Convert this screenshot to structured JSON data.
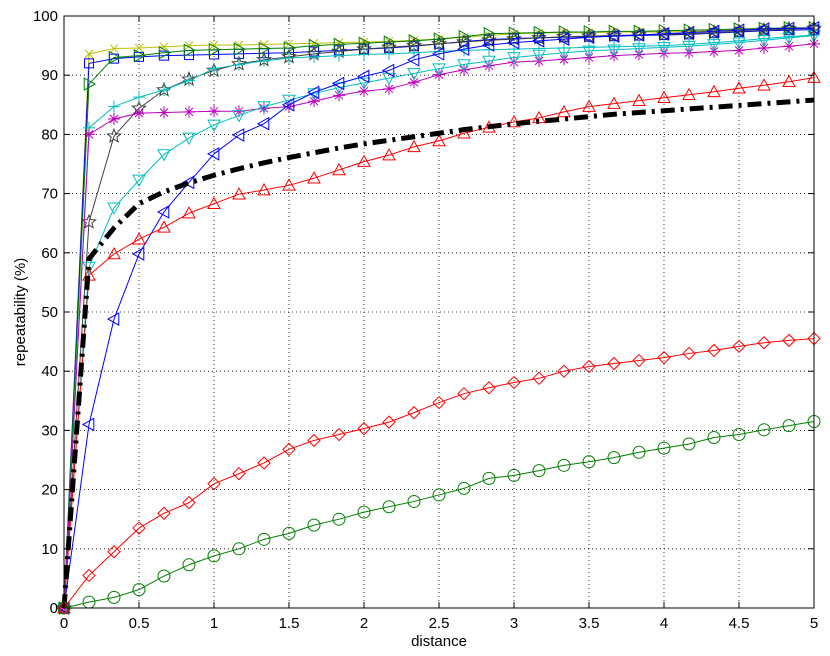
{
  "chart_data": {
    "type": "line",
    "title": "",
    "xlabel": "distance",
    "ylabel": "repeatability (%)",
    "xlim": [
      0,
      5
    ],
    "ylim": [
      0,
      100
    ],
    "grid": true,
    "grid_style": "dotted",
    "legend": "none",
    "x_ticks": [
      "0",
      "0.5",
      "1",
      "1.5",
      "2",
      "2.5",
      "3",
      "3.5",
      "4",
      "4.5",
      "5"
    ],
    "y_ticks": [
      "0",
      "10",
      "20",
      "30",
      "40",
      "50",
      "60",
      "70",
      "80",
      "90",
      "100"
    ],
    "x": [
      0,
      0.1667,
      0.3333,
      0.5,
      0.6667,
      0.8333,
      1,
      1.1667,
      1.3333,
      1.5,
      1.6667,
      1.8333,
      2,
      2.1667,
      2.3333,
      2.5,
      2.6667,
      2.8333,
      3,
      3.1667,
      3.3333,
      3.5,
      3.6667,
      3.8333,
      4,
      4.1667,
      4.3333,
      4.5,
      4.6667,
      4.8333,
      5
    ],
    "series": [
      {
        "color": "#bfbf00",
        "marker": "x",
        "values": [
          0,
          93.6,
          94.5,
          94.6,
          94.8,
          95,
          95.1,
          95.1,
          95.2,
          95.3,
          95.4,
          95.5,
          95.6,
          95.7,
          95.9,
          96.1,
          96.4,
          96.7,
          97,
          97.1,
          97.2,
          97.2,
          97.3,
          97.3,
          97.3,
          97.4,
          97.5,
          97.7,
          97.8,
          97.9,
          98
        ]
      },
      {
        "color": "#0000ff",
        "marker": "square",
        "values": [
          0,
          92,
          92.8,
          93.1,
          93.3,
          93.4,
          93.5,
          93.6,
          93.7,
          93.8,
          94,
          94.2,
          94.4,
          94.6,
          94.9,
          95.3,
          95.7,
          96,
          96.2,
          96.3,
          96.4,
          96.5,
          96.6,
          96.7,
          96.8,
          96.9,
          97.1,
          97.3,
          97.5,
          97.6,
          97.7
        ]
      },
      {
        "color": "#008000",
        "marker": "triangle-right",
        "values": [
          0,
          88.5,
          93,
          93.3,
          93.8,
          94.2,
          94.3,
          94.4,
          94.5,
          94.6,
          95,
          95.2,
          95.4,
          95.6,
          95.8,
          96.1,
          96.5,
          97,
          97.1,
          97.2,
          97.3,
          97.3,
          97.4,
          97.4,
          97.5,
          97.6,
          97.7,
          97.8,
          97.9,
          98,
          98
        ]
      },
      {
        "color": "#404040",
        "marker": "star",
        "values": [
          0,
          65.2,
          79.7,
          84.4,
          87.5,
          89.3,
          90.8,
          91.9,
          92.6,
          93.1,
          93.6,
          94,
          94.4,
          94.7,
          95,
          95.3,
          95.6,
          95.9,
          96.1,
          96.3,
          96.5,
          96.6,
          96.7,
          96.8,
          96.9,
          97,
          97.2,
          97.4,
          97.6,
          97.8,
          97.9
        ]
      },
      {
        "color": "#00bfbf",
        "marker": "plus",
        "values": [
          0,
          81.1,
          84.7,
          86.3,
          87.5,
          89.1,
          91.1,
          91.8,
          92.4,
          92.9,
          93.1,
          93.3,
          93.5,
          93.6,
          93.8,
          94,
          94.2,
          94.3,
          94.4,
          94.5,
          94.6,
          94.7,
          94.8,
          94.9,
          95,
          95.2,
          95.5,
          95.8,
          96.2,
          96.5,
          96.8
        ]
      },
      {
        "color": "#bf00bf",
        "marker": "asterisk",
        "values": [
          0,
          80,
          82.6,
          83.6,
          83.7,
          83.8,
          83.9,
          83.9,
          84.4,
          84.7,
          85.6,
          86.6,
          87.3,
          87.7,
          88.8,
          90.1,
          90.9,
          91.6,
          92.2,
          92.4,
          92.7,
          93,
          93.3,
          93.5,
          93.7,
          93.8,
          94,
          94.2,
          94.6,
          94.9,
          95.3
        ]
      },
      {
        "color": "#00bfbf",
        "marker": "triangle-down",
        "values": [
          0,
          57.6,
          67.6,
          72.3,
          76.6,
          79.4,
          81.6,
          83.2,
          84.7,
          85.8,
          86.9,
          87.9,
          88.7,
          89.5,
          90.3,
          91.1,
          91.8,
          92.4,
          93,
          93.4,
          93.8,
          94.1,
          94.3,
          94.5,
          94.7,
          94.9,
          95.2,
          95.5,
          95.9,
          96.3,
          96.7
        ]
      },
      {
        "color": "#0000ff",
        "marker": "triangle-left",
        "values": [
          0,
          31,
          48.8,
          59.8,
          66.9,
          71.9,
          76.7,
          79.9,
          81.8,
          85,
          87.1,
          88.6,
          89.8,
          90.8,
          92.6,
          93.6,
          94.4,
          95.1,
          95.5,
          95.8,
          96.1,
          96.4,
          96.6,
          96.8,
          97,
          97.2,
          97.4,
          97.6,
          97.8,
          97.9,
          98
        ]
      },
      {
        "color": "#ff0000",
        "marker": "triangle-up",
        "values": [
          0,
          56.2,
          59.8,
          62.3,
          64.3,
          66.7,
          68.3,
          69.9,
          70.6,
          71.4,
          72.6,
          74,
          75.4,
          76.5,
          77.9,
          78.9,
          80.2,
          81.2,
          82.1,
          82.8,
          83.8,
          84.7,
          85.2,
          85.7,
          86.2,
          86.7,
          87.2,
          87.8,
          88.3,
          88.9,
          89.6
        ]
      },
      {
        "color": "#000000",
        "marker": "none",
        "dashed": true,
        "values": [
          0,
          59,
          64.2,
          68.3,
          70.3,
          71.8,
          73.1,
          74.2,
          75.2,
          76.1,
          76.9,
          77.7,
          78.4,
          79,
          79.6,
          80.2,
          80.8,
          81.3,
          81.8,
          82.2,
          82.6,
          83,
          83.4,
          83.7,
          84,
          84.3,
          84.6,
          84.9,
          85.2,
          85.5,
          85.8
        ]
      },
      {
        "color": "#ff0000",
        "marker": "diamond",
        "values": [
          0,
          5.5,
          9.5,
          13.5,
          16,
          17.8,
          21,
          22.7,
          24.5,
          26.8,
          28.3,
          29.3,
          30.3,
          31.4,
          33,
          34.7,
          36.2,
          37.2,
          38.1,
          38.8,
          40,
          40.8,
          41.3,
          41.8,
          42.3,
          43,
          43.5,
          44.2,
          44.8,
          45.2,
          45.5
        ]
      },
      {
        "color": "#008000",
        "marker": "circle",
        "values": [
          0,
          1,
          1.8,
          3.1,
          5.4,
          7.3,
          8.8,
          10,
          11.6,
          12.6,
          14,
          15,
          16.2,
          17.1,
          18,
          19.1,
          20.2,
          21.9,
          22.4,
          23.2,
          24.1,
          24.7,
          25.4,
          26.3,
          27,
          27.7,
          28.8,
          29.3,
          30.1,
          30.8,
          31.5
        ]
      }
    ]
  }
}
